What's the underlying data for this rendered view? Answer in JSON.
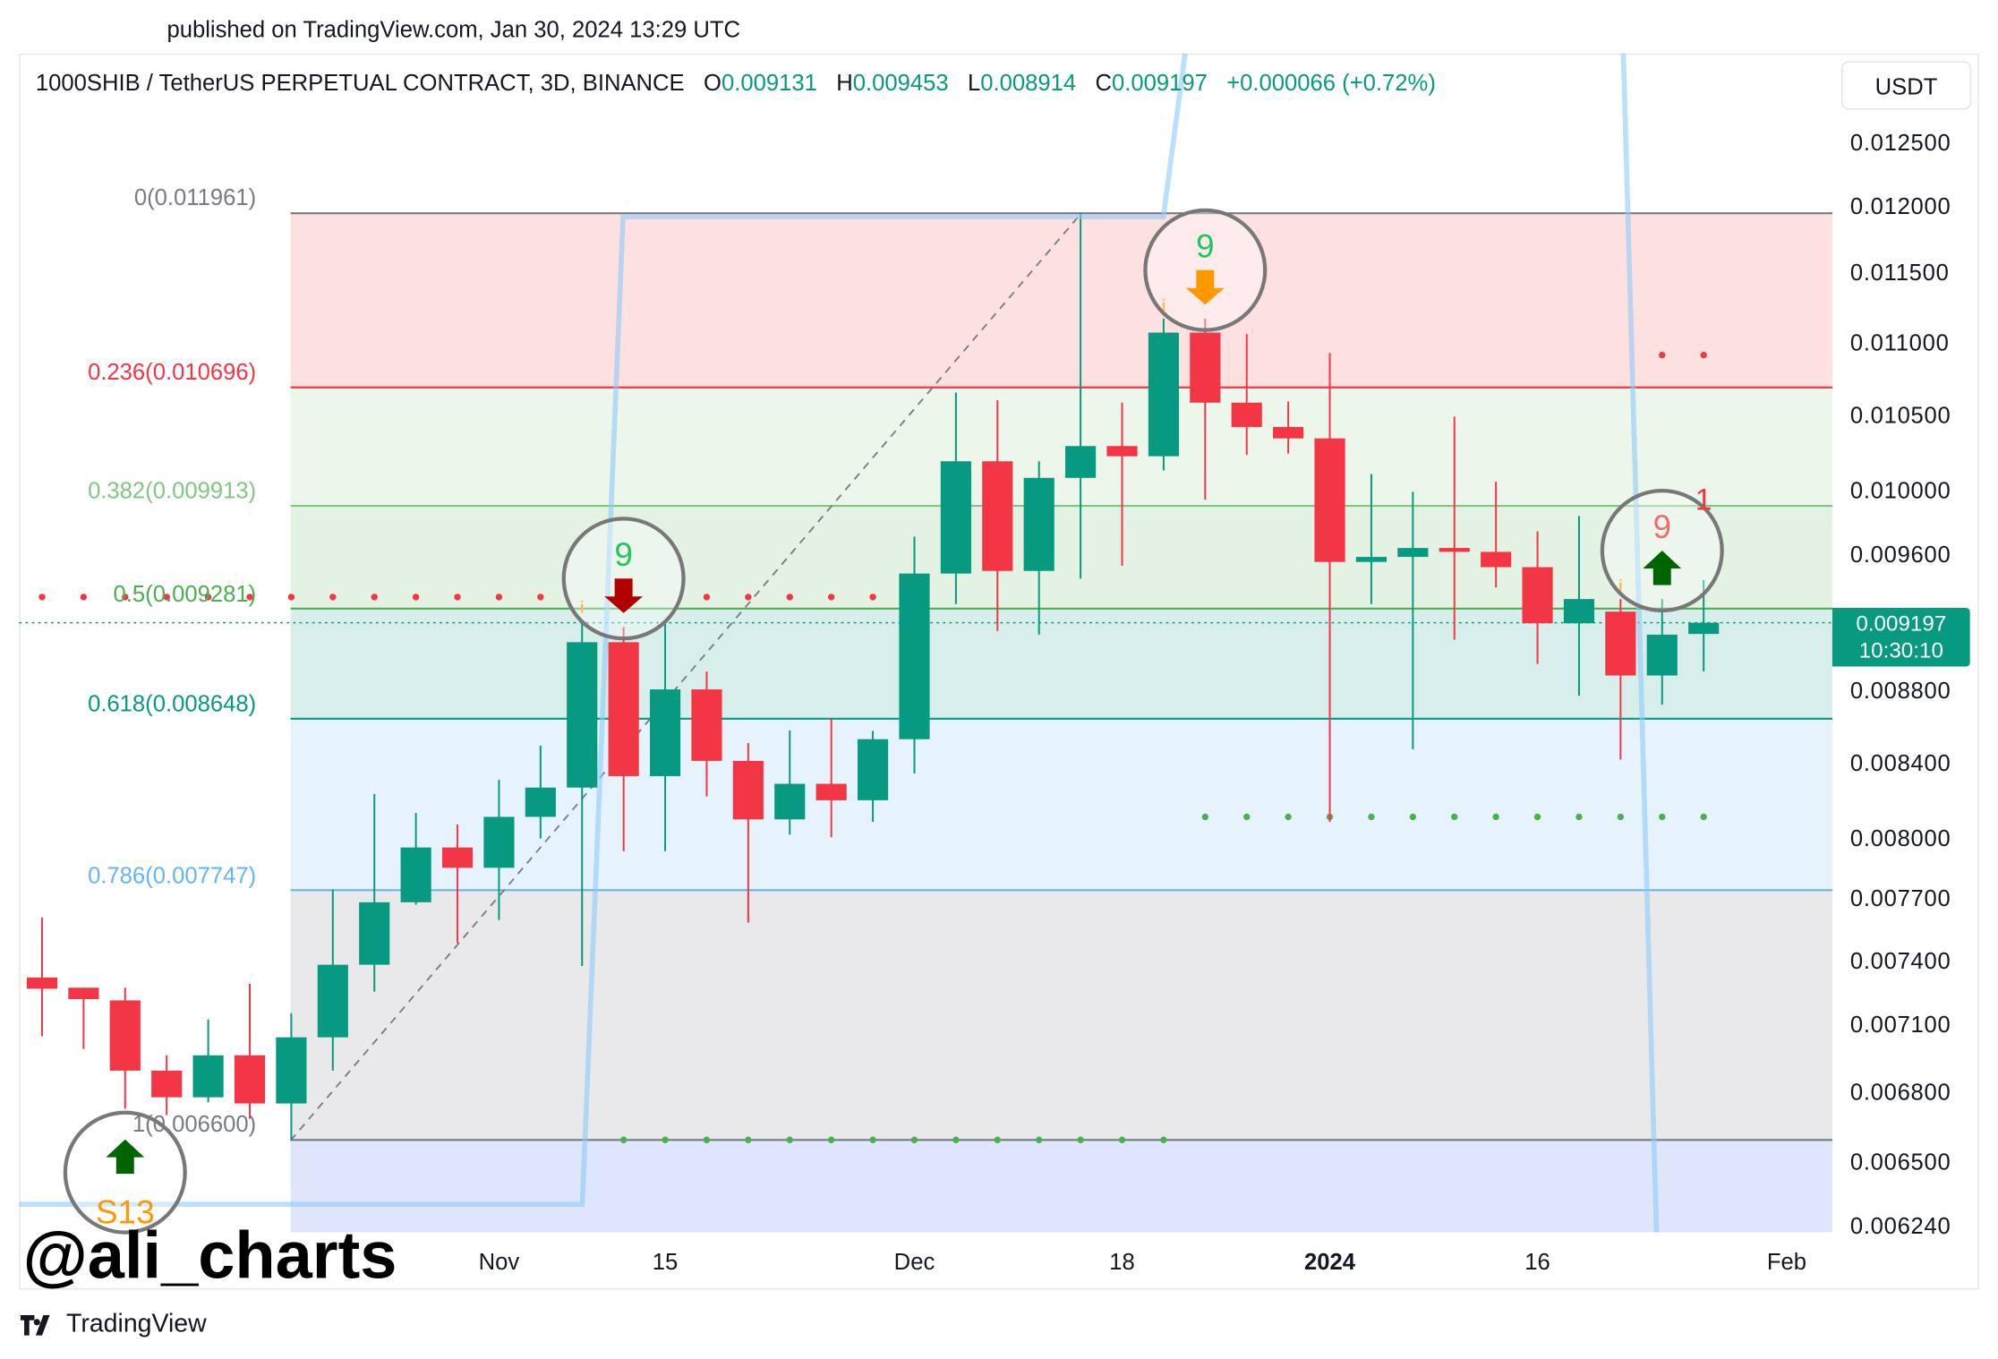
{
  "published": "published on TradingView.com, Jan 30, 2024 13:29 UTC",
  "legend": {
    "symbol": "1000SHIB / TetherUS PERPETUAL CONTRACT, 3D, BINANCE",
    "open_label": "O",
    "open": "0.009131",
    "high_label": "H",
    "high": "0.009453",
    "low_label": "L",
    "low": "0.008914",
    "close_label": "C",
    "close": "0.009197",
    "change": "+0.000066 (+0.72%)"
  },
  "currency": "USDT",
  "price_box": {
    "price": "0.009197",
    "countdown": "10:30:10",
    "color": "#089981"
  },
  "watermark": "@ali_charts",
  "brand": "TradingView",
  "chart_data": {
    "type": "candlestick",
    "y_scale": "log",
    "ylim": [
      0.00624,
      0.0127
    ],
    "y_ticks": [
      "0.012500",
      "0.012000",
      "0.011500",
      "0.011000",
      "0.010500",
      "0.010000",
      "0.009600",
      "0.008800",
      "0.008400",
      "0.008000",
      "0.007700",
      "0.007400",
      "0.007100",
      "0.006800",
      "0.006500",
      "0.006240"
    ],
    "x_ticks": [
      {
        "label": "Nov",
        "index": 11,
        "bold": false
      },
      {
        "label": "15",
        "index": 15,
        "bold": false
      },
      {
        "label": "Dec",
        "index": 21,
        "bold": false
      },
      {
        "label": "18",
        "index": 26,
        "bold": false
      },
      {
        "label": "2024",
        "index": 31,
        "bold": true
      },
      {
        "label": "16",
        "index": 36,
        "bold": false
      },
      {
        "label": "Feb",
        "index": 42,
        "bold": false
      }
    ],
    "colors": {
      "up": "#089981",
      "down": "#f23645"
    },
    "candles": [
      [
        0.007325,
        0.007612,
        0.007054,
        0.007272
      ],
      [
        0.007277,
        0.007277,
        0.006997,
        0.007224
      ],
      [
        0.007218,
        0.007277,
        0.006733,
        0.0069
      ],
      [
        0.0069,
        0.006968,
        0.006706,
        0.006783
      ],
      [
        0.006783,
        0.00713,
        0.006761,
        0.006968
      ],
      [
        0.006968,
        0.007295,
        0.00669,
        0.006756
      ],
      [
        0.006756,
        0.007159,
        0.0066,
        0.007049
      ],
      [
        0.007049,
        0.00775,
        0.0069,
        0.007385
      ],
      [
        0.007385,
        0.00824,
        0.007259,
        0.007687
      ],
      [
        0.007687,
        0.00814,
        0.007675,
        0.007962
      ],
      [
        0.007962,
        0.00808,
        0.007488,
        0.007859
      ],
      [
        0.007859,
        0.008315,
        0.0076,
        0.00812
      ],
      [
        0.00812,
        0.0085,
        0.008008,
        0.008274
      ],
      [
        0.008274,
        0.00921,
        0.007379,
        0.009083
      ],
      [
        0.009083,
        0.009172,
        0.007943,
        0.008335
      ],
      [
        0.008335,
        0.00921,
        0.007943,
        0.008812
      ],
      [
        0.008812,
        0.008913,
        0.008227,
        0.008417
      ],
      [
        0.008417,
        0.008514,
        0.007587,
        0.008107
      ],
      [
        0.008107,
        0.008584,
        0.008028,
        0.008294
      ],
      [
        0.008294,
        0.008648,
        0.008015,
        0.008207
      ],
      [
        0.008207,
        0.00858,
        0.008094,
        0.008535
      ],
      [
        0.008535,
        0.00972,
        0.008349,
        0.009492
      ],
      [
        0.009492,
        0.010661,
        0.009308,
        0.010201
      ],
      [
        0.010201,
        0.010609,
        0.009149,
        0.009508
      ],
      [
        0.009508,
        0.010201,
        0.009127,
        0.010093
      ],
      [
        0.010093,
        0.011961,
        0.009461,
        0.010301
      ],
      [
        0.010301,
        0.010592,
        0.009539,
        0.010234
      ],
      [
        0.010234,
        0.011179,
        0.010142,
        0.011079
      ],
      [
        0.011079,
        0.011179,
        0.009953,
        0.010592
      ],
      [
        0.010592,
        0.011069,
        0.010243,
        0.010428
      ],
      [
        0.010428,
        0.0106,
        0.010251,
        0.010352
      ],
      [
        0.010352,
        0.010935,
        0.008094,
        0.009563
      ],
      [
        0.009563,
        0.010118,
        0.009308,
        0.009594
      ],
      [
        0.009594,
        0.010003,
        0.00848,
        0.009649
      ],
      [
        0.009649,
        0.010497,
        0.009097,
        0.009625
      ],
      [
        0.009625,
        0.010068,
        0.009407,
        0.009531
      ],
      [
        0.009531,
        0.009752,
        0.008957,
        0.009194
      ],
      [
        0.009194,
        0.009848,
        0.008776,
        0.009338
      ],
      [
        0.009263,
        0.009338,
        0.008424,
        0.008891
      ],
      [
        0.008891,
        0.009338,
        0.008726,
        0.009127
      ],
      [
        0.009131,
        0.009453,
        0.008914,
        0.009197
      ]
    ],
    "last_price": 0.009197,
    "fib_levels": [
      {
        "label": "0(0.011961)",
        "price": 0.011961,
        "color": "#787b86",
        "fill": "#fde1e1"
      },
      {
        "label": "0.236(0.010696)",
        "price": 0.010696,
        "color": "#f23645",
        "fill": "#ecf6ea"
      },
      {
        "label": "0.382(0.009913)",
        "price": 0.009913,
        "color": "#81c784",
        "fill": "#e4f2e3"
      },
      {
        "label": "0.5(0.009281)",
        "price": 0.009281,
        "color": "#4caf50",
        "fill": "#d8eeea"
      },
      {
        "label": "0.618(0.008648)",
        "price": 0.008648,
        "color": "#089981",
        "fill": "#e6f3fd"
      },
      {
        "label": "0.786(0.007747)",
        "price": 0.007747,
        "color": "#64b5f6",
        "fill": "#e9e9eb"
      },
      {
        "label": "1(0.006600)",
        "price": 0.0066,
        "color": "#787b86",
        "fill": "#dfe6fb"
      }
    ],
    "dot_series": [
      {
        "color": "#f23645",
        "price": 0.00935,
        "indices": [
          0,
          1,
          2,
          3,
          4,
          5,
          6,
          7,
          8,
          9,
          10,
          11,
          12,
          16,
          17,
          18,
          19,
          20
        ]
      },
      {
        "color": "#f23645",
        "price": 0.01092,
        "indices": [
          39,
          40
        ]
      },
      {
        "color": "#4caf50",
        "price": 0.00812,
        "indices": [
          28,
          29,
          30,
          31,
          32,
          33,
          34,
          35,
          36,
          37,
          38,
          39,
          40
        ]
      },
      {
        "color": "#4caf50",
        "price": 0.0066,
        "indices": [
          14,
          15,
          16,
          17,
          18,
          19,
          20,
          21,
          22,
          23,
          24,
          25,
          26,
          27
        ]
      }
    ],
    "signals": [
      {
        "index": 2,
        "text": "S13",
        "text_color": "#ff9800",
        "arrow": "up",
        "arrow_color": "#006400",
        "position": "below"
      },
      {
        "index": 14,
        "text": "9",
        "text_color": "#22c55e",
        "arrow": "down",
        "arrow_color": "#b00000",
        "position": "above"
      },
      {
        "index": 28,
        "text": "9",
        "text_color": "#22c55e",
        "arrow": "down",
        "arrow_color": "#ff9800",
        "position": "above"
      },
      {
        "index": 39,
        "text": "9",
        "text_color": "#f26d6d",
        "arrow": "up",
        "arrow_color": "#006400",
        "position": "above"
      }
    ],
    "extra_count": {
      "index": 40,
      "text": "1",
      "color": "#f23645"
    },
    "info_markers": [
      {
        "index": 13,
        "text": "i",
        "color": "#ff9800"
      },
      {
        "index": 27,
        "text": "i",
        "color": "#ff9800"
      },
      {
        "index": 38,
        "text": "i",
        "color": "#ff9800"
      }
    ]
  }
}
